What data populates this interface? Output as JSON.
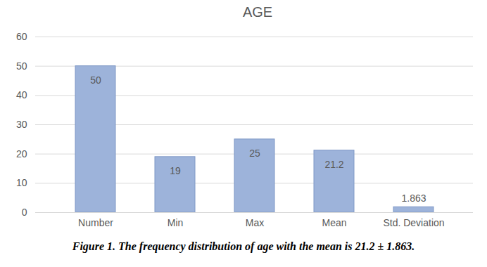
{
  "chart_data": {
    "type": "bar",
    "title": "AGE",
    "caption": "Figure 1. The frequency distribution of age with the mean is 21.2 ± 1.863.",
    "categories": [
      "Number",
      "Min",
      "Max",
      "Mean",
      "Std. Deviation"
    ],
    "values": [
      50,
      19,
      25,
      21.2,
      1.863
    ],
    "color": "#9db3da",
    "ylim": [
      0,
      60
    ],
    "yticks": [
      0,
      10,
      20,
      30,
      40,
      50,
      60
    ],
    "grid": true,
    "data_labels": true
  }
}
